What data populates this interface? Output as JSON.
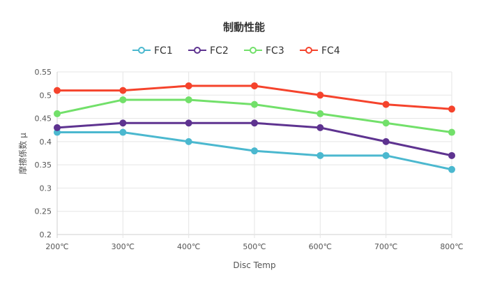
{
  "chart_data": {
    "type": "line",
    "title": "制動性能",
    "xlabel": "Disc Temp",
    "ylabel": "摩擦係数 μ",
    "categories": [
      "200℃",
      "300℃",
      "400℃",
      "500℃",
      "600℃",
      "700℃",
      "800℃"
    ],
    "ylim": [
      0.2,
      0.55
    ],
    "yticks": [
      "0.2",
      "0.25",
      "0.3",
      "0.35",
      "0.4",
      "0.45",
      "0.5",
      "0.55"
    ],
    "grid": true,
    "legend_position": "top-center",
    "series": [
      {
        "name": "FC1",
        "color": "#4bb8cf",
        "values": [
          0.42,
          0.42,
          0.4,
          0.38,
          0.37,
          0.37,
          0.34
        ]
      },
      {
        "name": "FC2",
        "color": "#5e3390",
        "values": [
          0.43,
          0.44,
          0.44,
          0.44,
          0.43,
          0.4,
          0.37
        ]
      },
      {
        "name": "FC3",
        "color": "#72e06a",
        "values": [
          0.46,
          0.49,
          0.49,
          0.48,
          0.46,
          0.44,
          0.42
        ]
      },
      {
        "name": "FC4",
        "color": "#f5432c",
        "values": [
          0.51,
          0.51,
          0.52,
          0.52,
          0.5,
          0.48,
          0.47
        ]
      }
    ]
  }
}
